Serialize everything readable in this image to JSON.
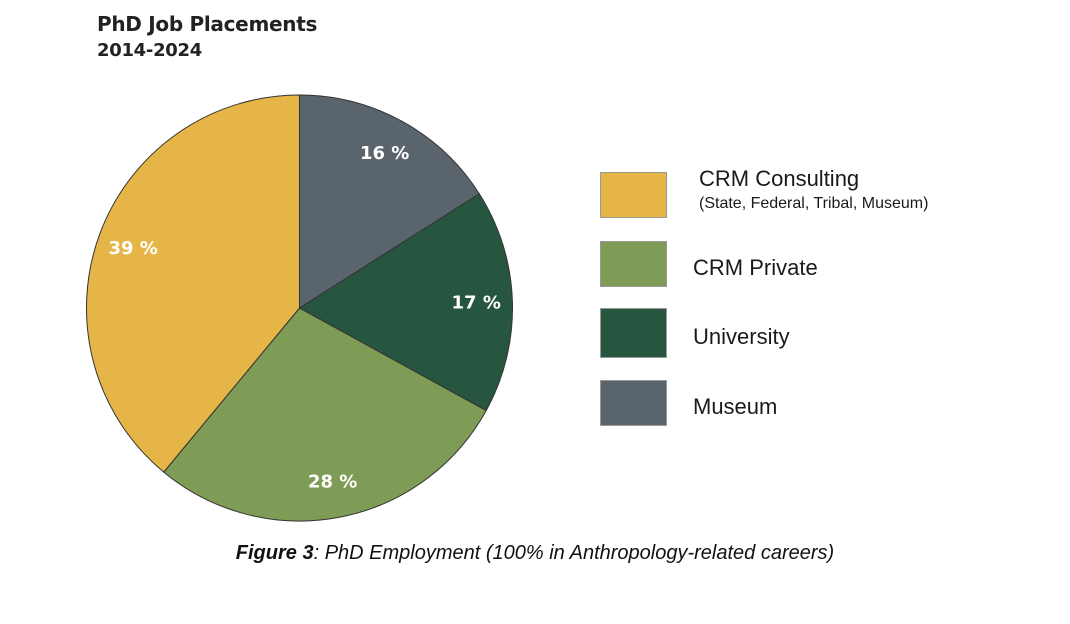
{
  "chart_data": {
    "type": "pie",
    "title": "PhD Job Placements",
    "subtitle": "2014-2024",
    "slices": [
      {
        "name": "Museum",
        "value": 16,
        "label": "16 %",
        "color": "#5A646C"
      },
      {
        "name": "University",
        "value": 17,
        "label": "17 %",
        "color": "#275640"
      },
      {
        "name": "CRM Private",
        "value": 28,
        "label": "28 %",
        "color": "#7E9C55"
      },
      {
        "name": "CRM Consulting",
        "value": 39,
        "label": "39 %",
        "color": "#E6B548"
      }
    ],
    "start": "top",
    "direction": "clockwise",
    "legend": {
      "placement": "right",
      "items": [
        {
          "label": "CRM Consulting",
          "sublabel": "(State, Federal, Tribal, Museum)",
          "color": "#E6B548"
        },
        {
          "label": "CRM Private",
          "color": "#7E9C55"
        },
        {
          "label": "University",
          "color": "#275640"
        },
        {
          "label": "Museum",
          "color": "#5A646C"
        }
      ]
    }
  },
  "caption": {
    "figure": "Figure 3",
    "text": ": PhD Employment (100% in Anthropology-related careers)"
  }
}
